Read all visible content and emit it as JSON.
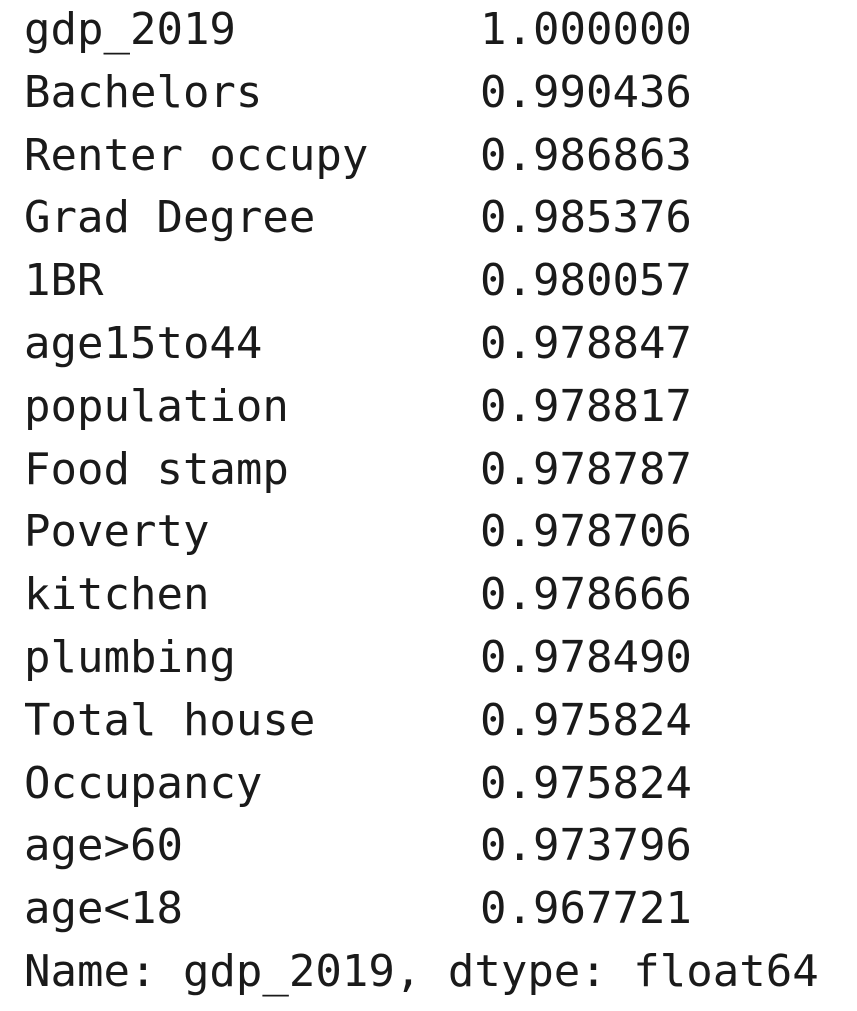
{
  "series": {
    "rows": [
      {
        "label": "gdp_2019",
        "value": "1.000000"
      },
      {
        "label": "Bachelors",
        "value": "0.990436"
      },
      {
        "label": "Renter occupy",
        "value": "0.986863"
      },
      {
        "label": "Grad Degree",
        "value": "0.985376"
      },
      {
        "label": "1BR",
        "value": "0.980057"
      },
      {
        "label": "age15to44",
        "value": "0.978847"
      },
      {
        "label": "population",
        "value": "0.978817"
      },
      {
        "label": "Food stamp",
        "value": "0.978787"
      },
      {
        "label": "Poverty",
        "value": "0.978706"
      },
      {
        "label": "kitchen",
        "value": "0.978666"
      },
      {
        "label": "plumbing",
        "value": "0.978490"
      },
      {
        "label": "Total house",
        "value": "0.975824"
      },
      {
        "label": "Occupancy",
        "value": "0.975824"
      },
      {
        "label": "age>60",
        "value": "0.973796"
      },
      {
        "label": "age<18",
        "value": "0.967721"
      }
    ],
    "footer": "Name: gdp_2019, dtype: float64"
  }
}
